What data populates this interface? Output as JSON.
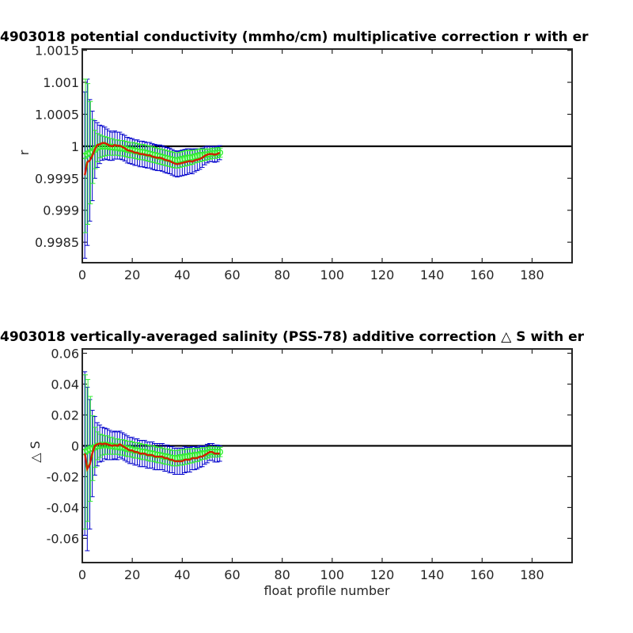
{
  "chart_data": [
    {
      "type": "line",
      "title": "4903018 potential conductivity (mmho/cm) multiplicative correction r with er",
      "xlabel": "",
      "ylabel": "r",
      "xlim": [
        0,
        196
      ],
      "ylim": [
        0.99818,
        1.00152
      ],
      "xticks": [
        0,
        20,
        40,
        60,
        80,
        100,
        120,
        140,
        160,
        180
      ],
      "yticks": [
        0.9985,
        0.999,
        0.9995,
        1,
        1.0005,
        1.001,
        1.0015
      ],
      "ytick_labels": [
        "0.9985",
        "0.999",
        "0.9995",
        "1",
        "1.0005",
        "1.001",
        "1.0015"
      ],
      "grid": false,
      "reference_line": 1,
      "colors": {
        "adjusted": "#cc2200",
        "fit": "#33ee33",
        "errorbar_outer": "#0000cc",
        "errorbar_inner": "#33ee33",
        "reference": "#000000"
      },
      "x": [
        1,
        2,
        3,
        4,
        5,
        6,
        7,
        8,
        9,
        10,
        11,
        12,
        13,
        14,
        15,
        16,
        17,
        18,
        19,
        20,
        21,
        22,
        23,
        24,
        25,
        26,
        27,
        28,
        29,
        30,
        31,
        32,
        33,
        34,
        35,
        36,
        37,
        38,
        39,
        40,
        41,
        42,
        43,
        44,
        45,
        46,
        47,
        48,
        49,
        50,
        51,
        52,
        53,
        54,
        55
      ],
      "series": [
        {
          "role": "adjusted",
          "values": [
            0.99955,
            0.99975,
            0.99978,
            0.99985,
            0.99995,
            1.00002,
            1.00003,
            1.00005,
            1.00005,
            1.00003,
            1.00001,
            1.0,
            1.00002,
            1.00001,
            1.00001,
            0.99999,
            0.99997,
            0.99994,
            0.99993,
            0.99992,
            0.9999,
            0.9999,
            0.99988,
            0.99988,
            0.99987,
            0.99986,
            0.99986,
            0.99984,
            0.99983,
            0.99982,
            0.99982,
            0.99981,
            0.99979,
            0.99978,
            0.99977,
            0.99975,
            0.99973,
            0.99972,
            0.99973,
            0.99974,
            0.99975,
            0.99976,
            0.99977,
            0.99976,
            0.99978,
            0.99979,
            0.9998,
            0.99982,
            0.99985,
            0.99987,
            0.99988,
            0.99988,
            0.99987,
            0.99988,
            0.9999
          ]
        },
        {
          "role": "fit",
          "values": [
            0.99985,
            0.99988,
            0.9999,
            0.99992,
            0.99995,
            0.99998,
            1.0,
            1.0,
            1.0,
            1.0,
            0.99999,
            0.99999,
            0.99998,
            0.99998,
            0.99997,
            0.99997,
            0.99996,
            0.99995,
            0.99994,
            0.99994,
            0.99993,
            0.99992,
            0.99991,
            0.99991,
            0.9999,
            0.99989,
            0.99988,
            0.99987,
            0.99986,
            0.99985,
            0.99984,
            0.99983,
            0.99982,
            0.99981,
            0.9998,
            0.99979,
            0.99978,
            0.99978,
            0.99979,
            0.9998,
            0.99981,
            0.99982,
            0.99982,
            0.99983,
            0.99984,
            0.99985,
            0.99986,
            0.99986,
            0.99987,
            0.99987,
            0.99988,
            0.99989,
            0.99989,
            0.9999,
            0.9999
          ]
        },
        {
          "role": "error_outer",
          "values": [
            0.0013,
            0.0013,
            0.00095,
            0.0007,
            0.00045,
            0.00035,
            0.0003,
            0.00027,
            0.00025,
            0.00024,
            0.00023,
            0.00022,
            0.00022,
            0.00021,
            0.00021,
            0.0002,
            0.0002,
            0.0002,
            0.0002,
            0.0002,
            0.0002,
            0.0002,
            0.0002,
            0.0002,
            0.0002,
            0.0002,
            0.0002,
            0.0002,
            0.0002,
            0.0002,
            0.0002,
            0.0002,
            0.0002,
            0.0002,
            0.0002,
            0.0002,
            0.0002,
            0.0002,
            0.0002,
            0.0002,
            0.0002,
            0.0002,
            0.00019,
            0.00019,
            0.00018,
            0.00017,
            0.00016,
            0.00015,
            0.00014,
            0.00013,
            0.00012,
            0.00012,
            0.00012,
            0.00012,
            0.00011
          ]
        },
        {
          "role": "error_inner",
          "values": [
            0.0012,
            0.0011,
            0.0008,
            0.0005,
            0.0003,
            0.00022,
            0.00018,
            0.00016,
            0.00015,
            0.00014,
            0.00013,
            0.00013,
            0.00012,
            0.00012,
            0.00012,
            0.00012,
            0.00012,
            0.00012,
            0.00012,
            0.00012,
            0.00012,
            0.00012,
            0.00012,
            0.00012,
            0.00012,
            0.00012,
            0.00012,
            0.00012,
            0.00012,
            0.00012,
            0.00012,
            0.00012,
            0.00012,
            0.00012,
            0.00012,
            0.00012,
            0.00012,
            0.00012,
            0.00012,
            0.00012,
            0.00012,
            0.00012,
            0.00011,
            0.00011,
            0.0001,
            0.0001,
            0.0001,
            9e-05,
            9e-05,
            8e-05,
            8e-05,
            8e-05,
            8e-05,
            8e-05,
            7e-05
          ]
        }
      ]
    },
    {
      "type": "line",
      "title": "4903018 vertically-averaged salinity (PSS-78) additive correction △ S with er",
      "xlabel": "float profile number",
      "ylabel": "△ S",
      "xlim": [
        0,
        196
      ],
      "ylim": [
        -0.0757,
        0.0628
      ],
      "xticks": [
        0,
        20,
        40,
        60,
        80,
        100,
        120,
        140,
        160,
        180
      ],
      "yticks": [
        -0.06,
        -0.04,
        -0.02,
        0,
        0.02,
        0.04,
        0.06
      ],
      "ytick_labels": [
        "-0.06",
        "-0.04",
        "-0.02",
        "0",
        "0.02",
        "0.04",
        "0.06"
      ],
      "grid": false,
      "reference_line": 0,
      "colors": {
        "adjusted": "#cc2200",
        "fit": "#33ee33",
        "errorbar_outer": "#0000cc",
        "errorbar_inner": "#33ee33",
        "reference": "#000000"
      },
      "x": [
        1,
        2,
        3,
        4,
        5,
        6,
        7,
        8,
        9,
        10,
        11,
        12,
        13,
        14,
        15,
        16,
        17,
        18,
        19,
        20,
        21,
        22,
        23,
        24,
        25,
        26,
        27,
        28,
        29,
        30,
        31,
        32,
        33,
        34,
        35,
        36,
        37,
        38,
        39,
        40,
        41,
        42,
        43,
        44,
        45,
        46,
        47,
        48,
        49,
        50,
        51,
        52,
        53,
        54,
        55
      ],
      "series": [
        {
          "role": "adjusted",
          "values": [
            -0.005,
            -0.015,
            -0.012,
            -0.005,
            0.0,
            0.001,
            0.0015,
            0.001,
            0.0015,
            0.001,
            0.0005,
            0.0,
            0.0005,
            0.0,
            0.001,
            0.0,
            -0.001,
            -0.002,
            -0.003,
            -0.003,
            -0.004,
            -0.004,
            -0.005,
            -0.005,
            -0.005,
            -0.006,
            -0.006,
            -0.006,
            -0.007,
            -0.007,
            -0.007,
            -0.007,
            -0.008,
            -0.008,
            -0.009,
            -0.009,
            -0.01,
            -0.01,
            -0.01,
            -0.01,
            -0.009,
            -0.009,
            -0.009,
            -0.008,
            -0.008,
            -0.008,
            -0.007,
            -0.007,
            -0.006,
            -0.005,
            -0.004,
            -0.004,
            -0.005,
            -0.005,
            -0.005
          ]
        },
        {
          "role": "fit",
          "values": [
            -0.004,
            -0.003,
            -0.002,
            -0.0015,
            -0.001,
            0.0,
            0.0,
            0.0005,
            0.0005,
            0.0005,
            0.0,
            0.0,
            -0.0005,
            -0.0005,
            -0.001,
            -0.001,
            -0.0015,
            -0.002,
            -0.002,
            -0.0025,
            -0.003,
            -0.003,
            -0.0035,
            -0.004,
            -0.004,
            -0.0045,
            -0.005,
            -0.005,
            -0.0055,
            -0.006,
            -0.006,
            -0.0065,
            -0.007,
            -0.007,
            -0.0075,
            -0.008,
            -0.008,
            -0.008,
            -0.0075,
            -0.0075,
            -0.007,
            -0.007,
            -0.0065,
            -0.0065,
            -0.006,
            -0.006,
            -0.0055,
            -0.005,
            -0.005,
            -0.0045,
            -0.004,
            -0.004,
            -0.004,
            -0.004,
            -0.004
          ]
        },
        {
          "role": "error_outer",
          "values": [
            0.053,
            0.053,
            0.042,
            0.028,
            0.019,
            0.014,
            0.012,
            0.011,
            0.01,
            0.01,
            0.0095,
            0.009,
            0.009,
            0.009,
            0.0085,
            0.0085,
            0.0085,
            0.0085,
            0.0085,
            0.0085,
            0.0085,
            0.0085,
            0.0085,
            0.0085,
            0.0085,
            0.0085,
            0.0085,
            0.0085,
            0.0085,
            0.0085,
            0.0085,
            0.0085,
            0.0085,
            0.0085,
            0.0085,
            0.0085,
            0.0085,
            0.0085,
            0.0085,
            0.0085,
            0.0085,
            0.008,
            0.008,
            0.0075,
            0.0075,
            0.007,
            0.007,
            0.0065,
            0.006,
            0.006,
            0.0055,
            0.0055,
            0.0055,
            0.0055,
            0.005
          ]
        },
        {
          "role": "error_inner",
          "values": [
            0.05,
            0.046,
            0.034,
            0.021,
            0.013,
            0.009,
            0.0075,
            0.0065,
            0.006,
            0.006,
            0.0055,
            0.0055,
            0.005,
            0.005,
            0.005,
            0.005,
            0.005,
            0.005,
            0.005,
            0.005,
            0.005,
            0.005,
            0.005,
            0.005,
            0.005,
            0.005,
            0.005,
            0.005,
            0.005,
            0.005,
            0.005,
            0.005,
            0.005,
            0.005,
            0.005,
            0.005,
            0.005,
            0.005,
            0.005,
            0.005,
            0.005,
            0.0048,
            0.0047,
            0.0045,
            0.0044,
            0.0042,
            0.004,
            0.0038,
            0.0036,
            0.0035,
            0.0034,
            0.0033,
            0.0033,
            0.0033,
            0.003
          ]
        }
      ]
    }
  ]
}
